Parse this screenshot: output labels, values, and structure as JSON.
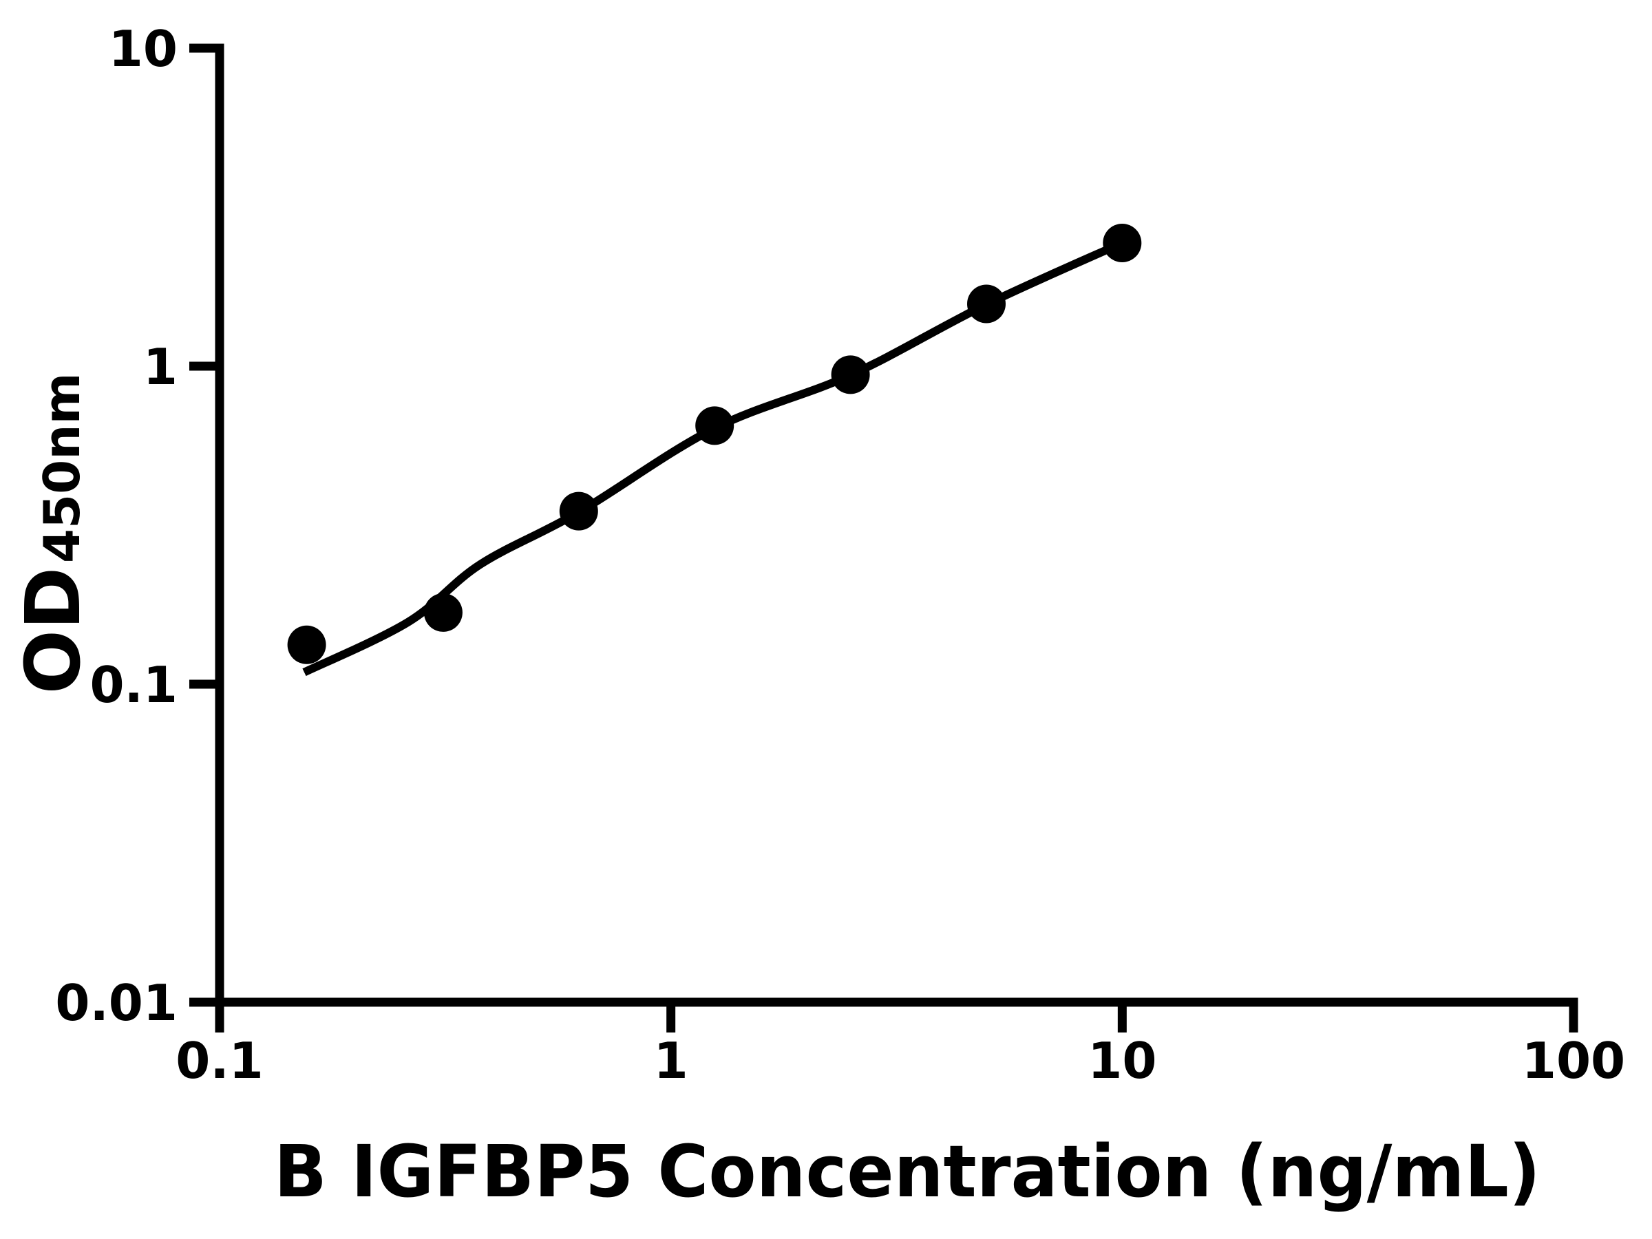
{
  "chart_data": {
    "type": "scatter",
    "title": "",
    "xlabel": "B IGFBP5 Concentration (ng/mL)",
    "ylabel_main": "OD",
    "ylabel_sub": "450nm",
    "x_scale": "log",
    "y_scale": "log",
    "xlim": [
      0.1,
      100
    ],
    "ylim": [
      0.01,
      10
    ],
    "x_ticks": [
      {
        "value": 0.1,
        "label": "0.1"
      },
      {
        "value": 1,
        "label": "1"
      },
      {
        "value": 10,
        "label": "10"
      },
      {
        "value": 100,
        "label": "100"
      }
    ],
    "y_ticks": [
      {
        "value": 0.01,
        "label": "0.01"
      },
      {
        "value": 0.1,
        "label": "0.1"
      },
      {
        "value": 1,
        "label": "1"
      },
      {
        "value": 10,
        "label": "10"
      }
    ],
    "grid": false,
    "legend": "none",
    "series": [
      {
        "name": "standard-data-points",
        "type": "scatter",
        "marker": "filled-circle",
        "points": [
          {
            "x": 0.156,
            "y": 0.133
          },
          {
            "x": 0.313,
            "y": 0.168
          },
          {
            "x": 0.625,
            "y": 0.35
          },
          {
            "x": 1.25,
            "y": 0.65
          },
          {
            "x": 2.5,
            "y": 0.94
          },
          {
            "x": 5,
            "y": 1.57
          },
          {
            "x": 10,
            "y": 2.44
          }
        ]
      },
      {
        "name": "fitted-standard-curve",
        "type": "line",
        "points": [
          {
            "x": 0.154,
            "y": 0.109
          },
          {
            "x": 0.262,
            "y": 0.157
          },
          {
            "x": 0.378,
            "y": 0.238
          },
          {
            "x": 0.626,
            "y": 0.348
          },
          {
            "x": 1.247,
            "y": 0.637
          },
          {
            "x": 2.498,
            "y": 0.937
          },
          {
            "x": 5.0,
            "y": 1.564
          },
          {
            "x": 9.99,
            "y": 2.438
          }
        ]
      }
    ],
    "colors": {
      "foreground": "#000000",
      "background": "#ffffff"
    }
  }
}
